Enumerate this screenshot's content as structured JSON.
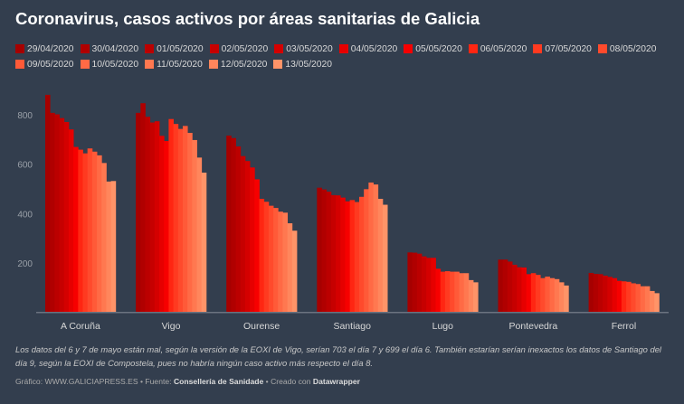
{
  "chart_data": {
    "type": "bar",
    "title": "Coronavirus, casos activos por áreas sanitarias de Galicia",
    "xlabel": "",
    "ylabel": "",
    "ylim": [
      0,
      900
    ],
    "yticks": [
      200,
      400,
      600,
      800
    ],
    "grid": false,
    "legend_placement": "top",
    "categories": [
      "A Coruña",
      "Vigo",
      "Ourense",
      "Santiago",
      "Lugo",
      "Pontevedra",
      "Ferrol"
    ],
    "series": [
      {
        "name": "29/04/2020",
        "color": "#a60000",
        "values": [
          881,
          808,
          716,
          505,
          243,
          214,
          160
        ]
      },
      {
        "name": "30/04/2020",
        "color": "#b00000",
        "values": [
          808,
          847,
          706,
          498,
          242,
          214,
          156
        ]
      },
      {
        "name": "01/05/2020",
        "color": "#bb0000",
        "values": [
          802,
          792,
          672,
          489,
          238,
          206,
          155
        ]
      },
      {
        "name": "02/05/2020",
        "color": "#c60000",
        "values": [
          787,
          769,
          633,
          475,
          227,
          193,
          149
        ]
      },
      {
        "name": "03/05/2020",
        "color": "#d40000",
        "values": [
          771,
          774,
          613,
          474,
          221,
          183,
          144
        ]
      },
      {
        "name": "04/05/2020",
        "color": "#e60000",
        "values": [
          741,
          715,
          587,
          465,
          221,
          182,
          139
        ]
      },
      {
        "name": "05/05/2020",
        "color": "#f70000",
        "values": [
          670,
          694,
          539,
          450,
          177,
          155,
          128
        ]
      },
      {
        "name": "06/05/2020",
        "color": "#ff2612",
        "values": [
          659,
          783,
          460,
          455,
          165,
          159,
          126
        ]
      },
      {
        "name": "07/05/2020",
        "color": "#ff3a20",
        "values": [
          644,
          763,
          448,
          447,
          167,
          152,
          124
        ]
      },
      {
        "name": "08/05/2020",
        "color": "#ff4a2c",
        "values": [
          664,
          743,
          432,
          468,
          165,
          139,
          118
        ]
      },
      {
        "name": "09/05/2020",
        "color": "#ff5a38",
        "values": [
          651,
          755,
          423,
          499,
          165,
          145,
          115
        ]
      },
      {
        "name": "10/05/2020",
        "color": "#ff6a45",
        "values": [
          636,
          727,
          408,
          526,
          159,
          139,
          106
        ]
      },
      {
        "name": "11/05/2020",
        "color": "#ff7850",
        "values": [
          605,
          698,
          404,
          518,
          159,
          135,
          106
        ]
      },
      {
        "name": "12/05/2020",
        "color": "#ff865c",
        "values": [
          530,
          627,
          361,
          460,
          131,
          122,
          87
        ]
      },
      {
        "name": "13/05/2020",
        "color": "#ff9468",
        "values": [
          532,
          566,
          331,
          436,
          122,
          109,
          78
        ]
      }
    ]
  },
  "notes": "Los datos del 6 y 7 de mayo están mal, según la versión de la EOXI de Vigo, serían 703 el día 7 y 699 el día 6. También estarían serían inexactos los datos de Santiago del día 9, según la EOXI de Compostela, pues no habría ningún caso activo más respecto el día 8.",
  "footer": {
    "grafico_label": "Gráfico: WWW.GALICIAPRESS.ES • Fuente: ",
    "source": "Consellería de Sanidade",
    "created_label": " • Creado con ",
    "tool": "Datawrapper"
  }
}
